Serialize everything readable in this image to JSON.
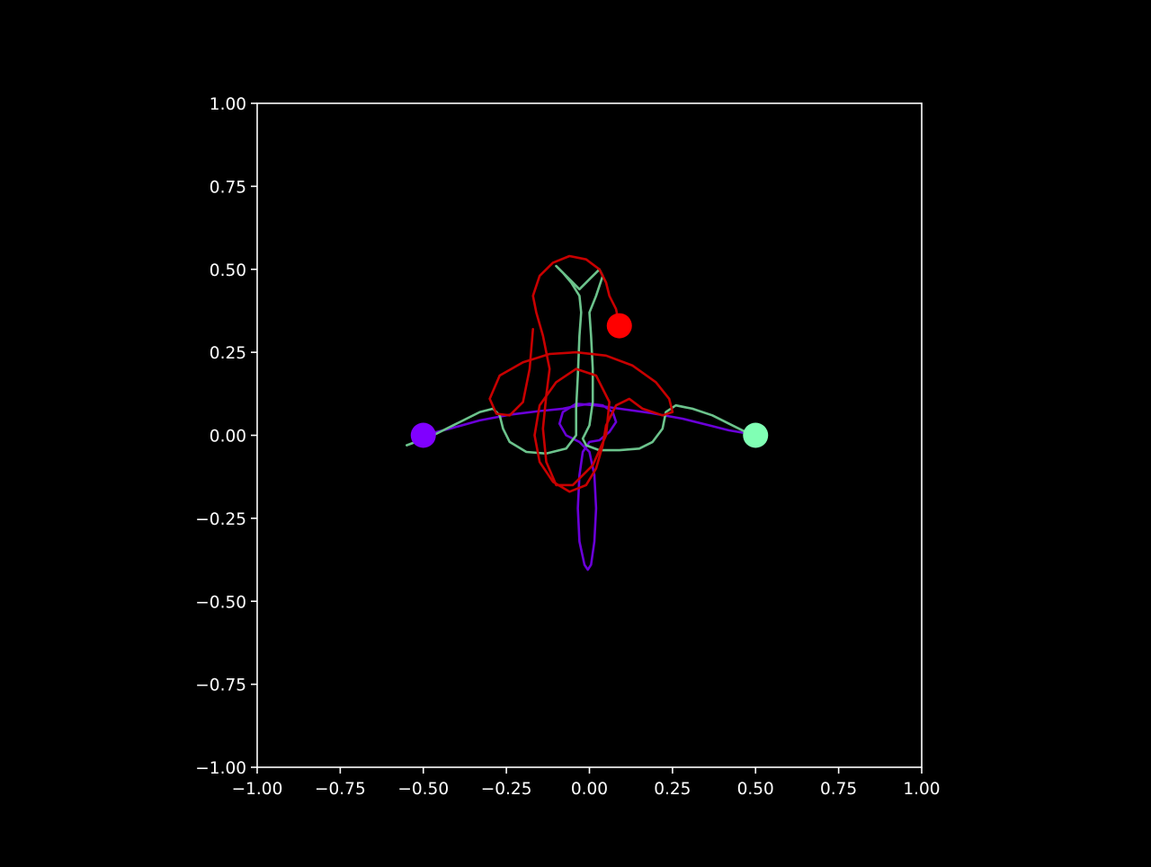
{
  "chart_data": {
    "type": "line",
    "title": "",
    "xlabel": "",
    "ylabel": "",
    "xlim": [
      -1.0,
      1.0
    ],
    "ylim": [
      -1.0,
      1.0
    ],
    "xticks": [
      -1.0,
      -0.75,
      -0.5,
      -0.25,
      0.0,
      0.25,
      0.5,
      0.75,
      1.0
    ],
    "yticks": [
      -1.0,
      -0.75,
      -0.5,
      -0.25,
      0.0,
      0.25,
      0.5,
      0.75,
      1.0
    ],
    "xtick_labels": [
      "−1.00",
      "−0.75",
      "−0.50",
      "−0.25",
      "0.00",
      "0.25",
      "0.50",
      "0.75",
      "1.00"
    ],
    "ytick_labels": [
      "−1.00",
      "−0.75",
      "−0.50",
      "−0.25",
      "0.00",
      "0.25",
      "0.50",
      "0.75",
      "1.00"
    ],
    "grid": false,
    "background": "#000000",
    "axis_color": "#ffffff",
    "series": [
      {
        "color": "#6a00d8",
        "marker_color": "#8000ff",
        "marker": [
          -0.5,
          0.0
        ],
        "points": [
          [
            -0.5,
            0.0
          ],
          [
            -0.42,
            0.02
          ],
          [
            -0.33,
            0.045
          ],
          [
            -0.24,
            0.062
          ],
          [
            -0.15,
            0.073
          ],
          [
            -0.08,
            0.08
          ],
          [
            -0.03,
            0.09
          ],
          [
            0.0,
            0.095
          ],
          [
            0.04,
            0.09
          ],
          [
            0.07,
            0.07
          ],
          [
            0.08,
            0.04
          ],
          [
            0.06,
            0.01
          ],
          [
            0.03,
            -0.015
          ],
          [
            0.0,
            -0.02
          ],
          [
            -0.02,
            -0.05
          ],
          [
            -0.03,
            -0.12
          ],
          [
            -0.035,
            -0.22
          ],
          [
            -0.03,
            -0.32
          ],
          [
            -0.015,
            -0.39
          ],
          [
            -0.005,
            -0.405
          ],
          [
            0.005,
            -0.39
          ],
          [
            0.015,
            -0.32
          ],
          [
            0.02,
            -0.22
          ],
          [
            0.015,
            -0.12
          ],
          [
            0.0,
            -0.05
          ],
          [
            -0.03,
            -0.02
          ],
          [
            -0.07,
            0.0
          ],
          [
            -0.09,
            0.035
          ],
          [
            -0.08,
            0.07
          ],
          [
            -0.04,
            0.095
          ],
          [
            0.02,
            0.09
          ],
          [
            0.09,
            0.08
          ],
          [
            0.18,
            0.068
          ],
          [
            0.28,
            0.05
          ],
          [
            0.36,
            0.03
          ],
          [
            0.42,
            0.015
          ],
          [
            0.46,
            0.008
          ]
        ]
      },
      {
        "color": "#6cc38c",
        "marker_color": "#80ffb4",
        "marker": [
          0.5,
          0.0
        ],
        "points": [
          [
            -0.55,
            -0.03
          ],
          [
            -0.47,
            0.0
          ],
          [
            -0.4,
            0.035
          ],
          [
            -0.33,
            0.07
          ],
          [
            -0.29,
            0.08
          ],
          [
            -0.27,
            0.06
          ],
          [
            -0.26,
            0.02
          ],
          [
            -0.24,
            -0.02
          ],
          [
            -0.19,
            -0.05
          ],
          [
            -0.13,
            -0.055
          ],
          [
            -0.07,
            -0.04
          ],
          [
            -0.04,
            0.0
          ],
          [
            -0.04,
            0.08
          ],
          [
            -0.035,
            0.18
          ],
          [
            -0.03,
            0.3
          ],
          [
            -0.025,
            0.37
          ],
          [
            -0.03,
            0.42
          ],
          [
            -0.055,
            0.46
          ],
          [
            -0.08,
            0.49
          ],
          [
            -0.1,
            0.51
          ],
          [
            -0.09,
            0.5
          ],
          [
            -0.06,
            0.47
          ],
          [
            -0.03,
            0.44
          ],
          [
            0.0,
            0.47
          ],
          [
            0.03,
            0.5
          ],
          [
            0.04,
            0.48
          ],
          [
            0.02,
            0.42
          ],
          [
            0.0,
            0.37
          ],
          [
            0.005,
            0.3
          ],
          [
            0.01,
            0.2
          ],
          [
            0.01,
            0.1
          ],
          [
            0.0,
            0.03
          ],
          [
            -0.02,
            -0.01
          ],
          [
            -0.01,
            -0.03
          ],
          [
            0.03,
            -0.045
          ],
          [
            0.09,
            -0.045
          ],
          [
            0.15,
            -0.04
          ],
          [
            0.19,
            -0.02
          ],
          [
            0.22,
            0.02
          ],
          [
            0.23,
            0.07
          ],
          [
            0.26,
            0.09
          ],
          [
            0.31,
            0.08
          ],
          [
            0.37,
            0.06
          ],
          [
            0.43,
            0.03
          ],
          [
            0.47,
            0.01
          ],
          [
            0.5,
            0.0
          ]
        ]
      },
      {
        "color": "#c80000",
        "marker_color": "#ff0000",
        "marker": [
          0.09,
          0.33
        ],
        "points": [
          [
            -0.17,
            0.32
          ],
          [
            -0.18,
            0.2
          ],
          [
            -0.2,
            0.1
          ],
          [
            -0.24,
            0.06
          ],
          [
            -0.28,
            0.065
          ],
          [
            -0.3,
            0.11
          ],
          [
            -0.27,
            0.18
          ],
          [
            -0.2,
            0.22
          ],
          [
            -0.12,
            0.245
          ],
          [
            -0.04,
            0.25
          ],
          [
            0.05,
            0.24
          ],
          [
            0.13,
            0.21
          ],
          [
            0.2,
            0.16
          ],
          [
            0.24,
            0.11
          ],
          [
            0.25,
            0.07
          ],
          [
            0.22,
            0.06
          ],
          [
            0.16,
            0.08
          ],
          [
            0.12,
            0.11
          ],
          [
            0.08,
            0.09
          ],
          [
            0.05,
            0.03
          ],
          [
            0.04,
            -0.03
          ],
          [
            0.02,
            -0.1
          ],
          [
            -0.01,
            -0.15
          ],
          [
            -0.06,
            -0.17
          ],
          [
            -0.11,
            -0.14
          ],
          [
            -0.15,
            -0.08
          ],
          [
            -0.165,
            0.0
          ],
          [
            -0.15,
            0.09
          ],
          [
            -0.1,
            0.16
          ],
          [
            -0.04,
            0.2
          ],
          [
            0.02,
            0.18
          ],
          [
            0.06,
            0.1
          ],
          [
            0.05,
            0.0
          ],
          [
            0.01,
            -0.09
          ],
          [
            -0.05,
            -0.15
          ],
          [
            -0.1,
            -0.15
          ],
          [
            -0.13,
            -0.08
          ],
          [
            -0.14,
            0.02
          ],
          [
            -0.13,
            0.12
          ],
          [
            -0.12,
            0.2
          ],
          [
            -0.14,
            0.3
          ],
          [
            -0.16,
            0.37
          ],
          [
            -0.17,
            0.42
          ],
          [
            -0.15,
            0.48
          ],
          [
            -0.11,
            0.52
          ],
          [
            -0.06,
            0.54
          ],
          [
            -0.01,
            0.53
          ],
          [
            0.03,
            0.5
          ],
          [
            0.05,
            0.46
          ],
          [
            0.06,
            0.42
          ],
          [
            0.08,
            0.38
          ],
          [
            0.09,
            0.33
          ]
        ]
      }
    ]
  }
}
